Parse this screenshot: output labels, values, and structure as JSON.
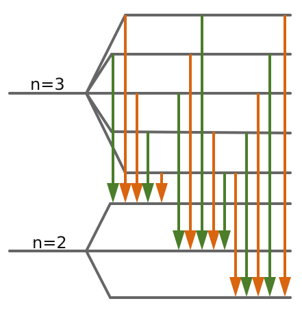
{
  "labels": {
    "n3": "n=3",
    "n2": "n=2"
  },
  "colors": {
    "level": "#666666",
    "green": "#4b7d2a",
    "orange": "#d9650f"
  },
  "levels": {
    "n3_sublevels": 5,
    "n2_sublevels": 3
  },
  "transitions": [
    {
      "from": "n3-1",
      "to": "n2-1",
      "color": "green"
    },
    {
      "from": "n3-5",
      "to": "n2-1",
      "color": "orange"
    },
    {
      "from": "n3-4",
      "to": "n2-1",
      "color": "orange"
    },
    {
      "from": "n3-2",
      "to": "n2-1",
      "color": "green"
    },
    {
      "from": "n3-1",
      "to": "n2-1",
      "color": "orange"
    },
    {
      "from": "n3-3",
      "to": "n2-2",
      "color": "green"
    },
    {
      "from": "n3-4",
      "to": "n2-2",
      "color": "orange"
    },
    {
      "from": "n3-5",
      "to": "n2-2",
      "color": "green"
    },
    {
      "from": "n3-2",
      "to": "n2-2",
      "color": "orange"
    },
    {
      "from": "n3-1",
      "to": "n2-2",
      "color": "green"
    },
    {
      "from": "n3-1",
      "to": "n2-3",
      "color": "orange"
    },
    {
      "from": "n3-2",
      "to": "n2-3",
      "color": "green"
    },
    {
      "from": "n3-3",
      "to": "n2-3",
      "color": "orange"
    },
    {
      "from": "n3-4",
      "to": "n2-3",
      "color": "green"
    },
    {
      "from": "n3-5",
      "to": "n2-3",
      "color": "orange"
    }
  ]
}
